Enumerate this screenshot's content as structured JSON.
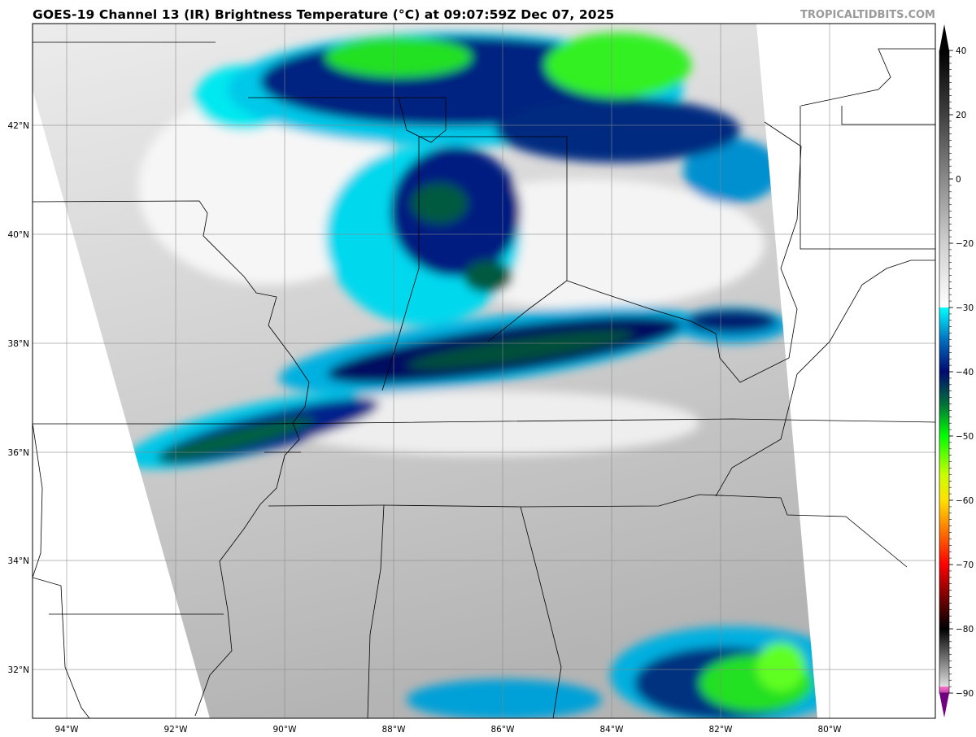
{
  "title": "GOES-19 Channel 13 (IR) Brightness Temperature (°C) at 09:07:59Z Dec 07, 2025",
  "brand": "TROPICALTIDBITS.COM",
  "map": {
    "longitude_labels": [
      "94°W",
      "92°W",
      "90°W",
      "88°W",
      "86°W",
      "84°W",
      "82°W",
      "80°W"
    ],
    "latitude_labels": [
      "42°N",
      "40°N",
      "38°N",
      "36°N",
      "34°N",
      "32°N"
    ]
  },
  "colorbar": {
    "units": "°C",
    "tick_labels": [
      "40",
      "20",
      "0",
      "−20",
      "−30",
      "−40",
      "−50",
      "−60",
      "−70",
      "−80",
      "−90"
    ],
    "colors": {
      "warm_top": "#000000",
      "zero": "#c8c8c8",
      "cold_start": "#00ffff",
      "blue": "#0060b0",
      "navy": "#00106e",
      "dark_green": "#006040",
      "green": "#00ff00",
      "yellow": "#ffff00",
      "orange": "#ff8000",
      "red": "#ff0000",
      "dark_red": "#600000",
      "pink": "#ff70c8",
      "purple": "#700080"
    }
  }
}
